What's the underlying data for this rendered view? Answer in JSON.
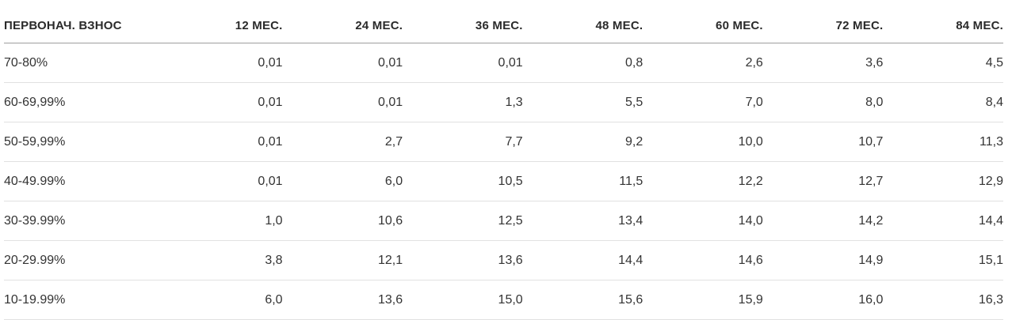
{
  "table": {
    "headers": [
      "ПЕРВОНАЧ. ВЗНОС",
      "12 МЕС.",
      "24 МЕС.",
      "36 МЕС.",
      "48 МЕС.",
      "60 МЕС.",
      "72 МЕС.",
      "84 МЕС."
    ],
    "rows": [
      [
        "70-80%",
        "0,01",
        "0,01",
        "0,01",
        "0,8",
        "2,6",
        "3,6",
        "4,5"
      ],
      [
        "60-69,99%",
        "0,01",
        "0,01",
        "1,3",
        "5,5",
        "7,0",
        "8,0",
        "8,4"
      ],
      [
        "50-59,99%",
        "0,01",
        "2,7",
        "7,7",
        "9,2",
        "10,0",
        "10,7",
        "11,3"
      ],
      [
        "40-49.99%",
        "0,01",
        "6,0",
        "10,5",
        "11,5",
        "12,2",
        "12,7",
        "12,9"
      ],
      [
        "30-39.99%",
        "1,0",
        "10,6",
        "12,5",
        "13,4",
        "14,0",
        "14,2",
        "14,4"
      ],
      [
        "20-29.99%",
        "3,8",
        "12,1",
        "13,6",
        "14,4",
        "14,6",
        "14,9",
        "15,1"
      ],
      [
        "10-19.99%",
        "6,0",
        "13,6",
        "15,0",
        "15,6",
        "15,9",
        "16,0",
        "16,3"
      ]
    ]
  }
}
